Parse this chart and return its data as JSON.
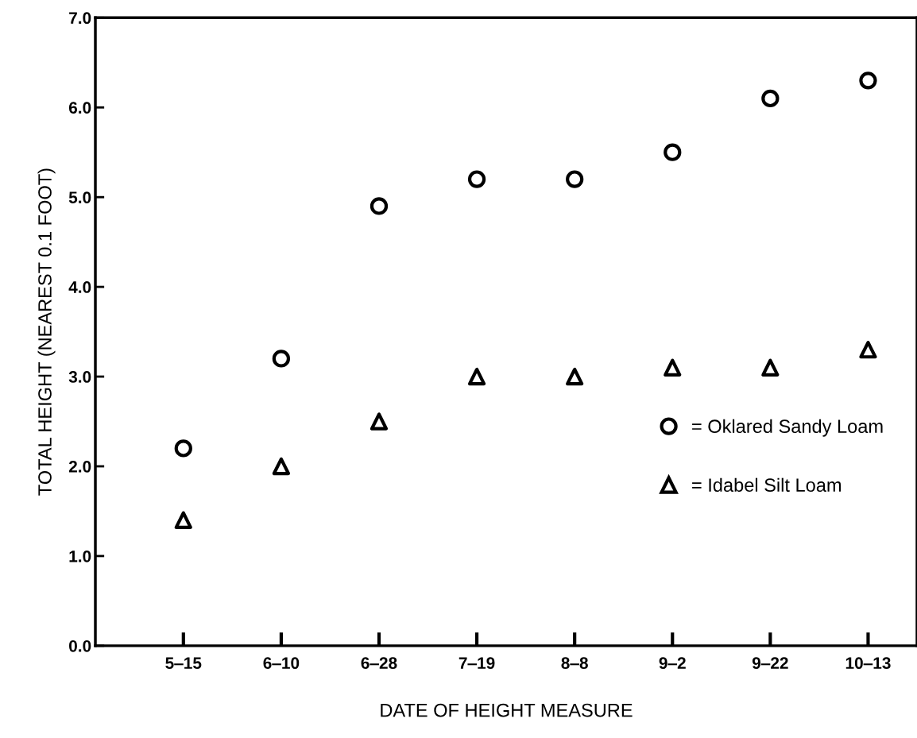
{
  "chart_data": {
    "type": "scatter",
    "xlabel": "DATE OF HEIGHT MEASURE",
    "ylabel": "TOTAL HEIGHT (NEAREST 0.1 FOOT)",
    "categories": [
      "5‒15",
      "6‒10",
      "6‒28",
      "7‒19",
      "8‒8",
      "9‒2",
      "9‒22",
      "10‒13"
    ],
    "series": [
      {
        "name": "= Oklared Sandy Loam",
        "color": "#000000",
        "marker": "circle",
        "values": [
          2.2,
          3.2,
          4.9,
          5.2,
          5.2,
          5.5,
          6.1,
          6.3
        ]
      },
      {
        "name": "= Idabel Silt Loam",
        "color": "#000000",
        "marker": "triangle",
        "values": [
          1.4,
          2.0,
          2.5,
          3.0,
          3.0,
          3.1,
          3.1,
          3.3
        ]
      }
    ],
    "ylim": [
      0,
      7
    ],
    "yticks": [
      {
        "value": 0,
        "label": "0.0"
      },
      {
        "value": 1,
        "label": "1.0"
      },
      {
        "value": 2,
        "label": "2.0"
      },
      {
        "value": 3,
        "label": "3.0"
      },
      {
        "value": 4,
        "label": "4.0"
      },
      {
        "value": 5,
        "label": "5.0"
      },
      {
        "value": 6,
        "label": "6.0"
      },
      {
        "value": 7,
        "label": "7.0"
      }
    ],
    "grid": false,
    "legend": "center right"
  }
}
